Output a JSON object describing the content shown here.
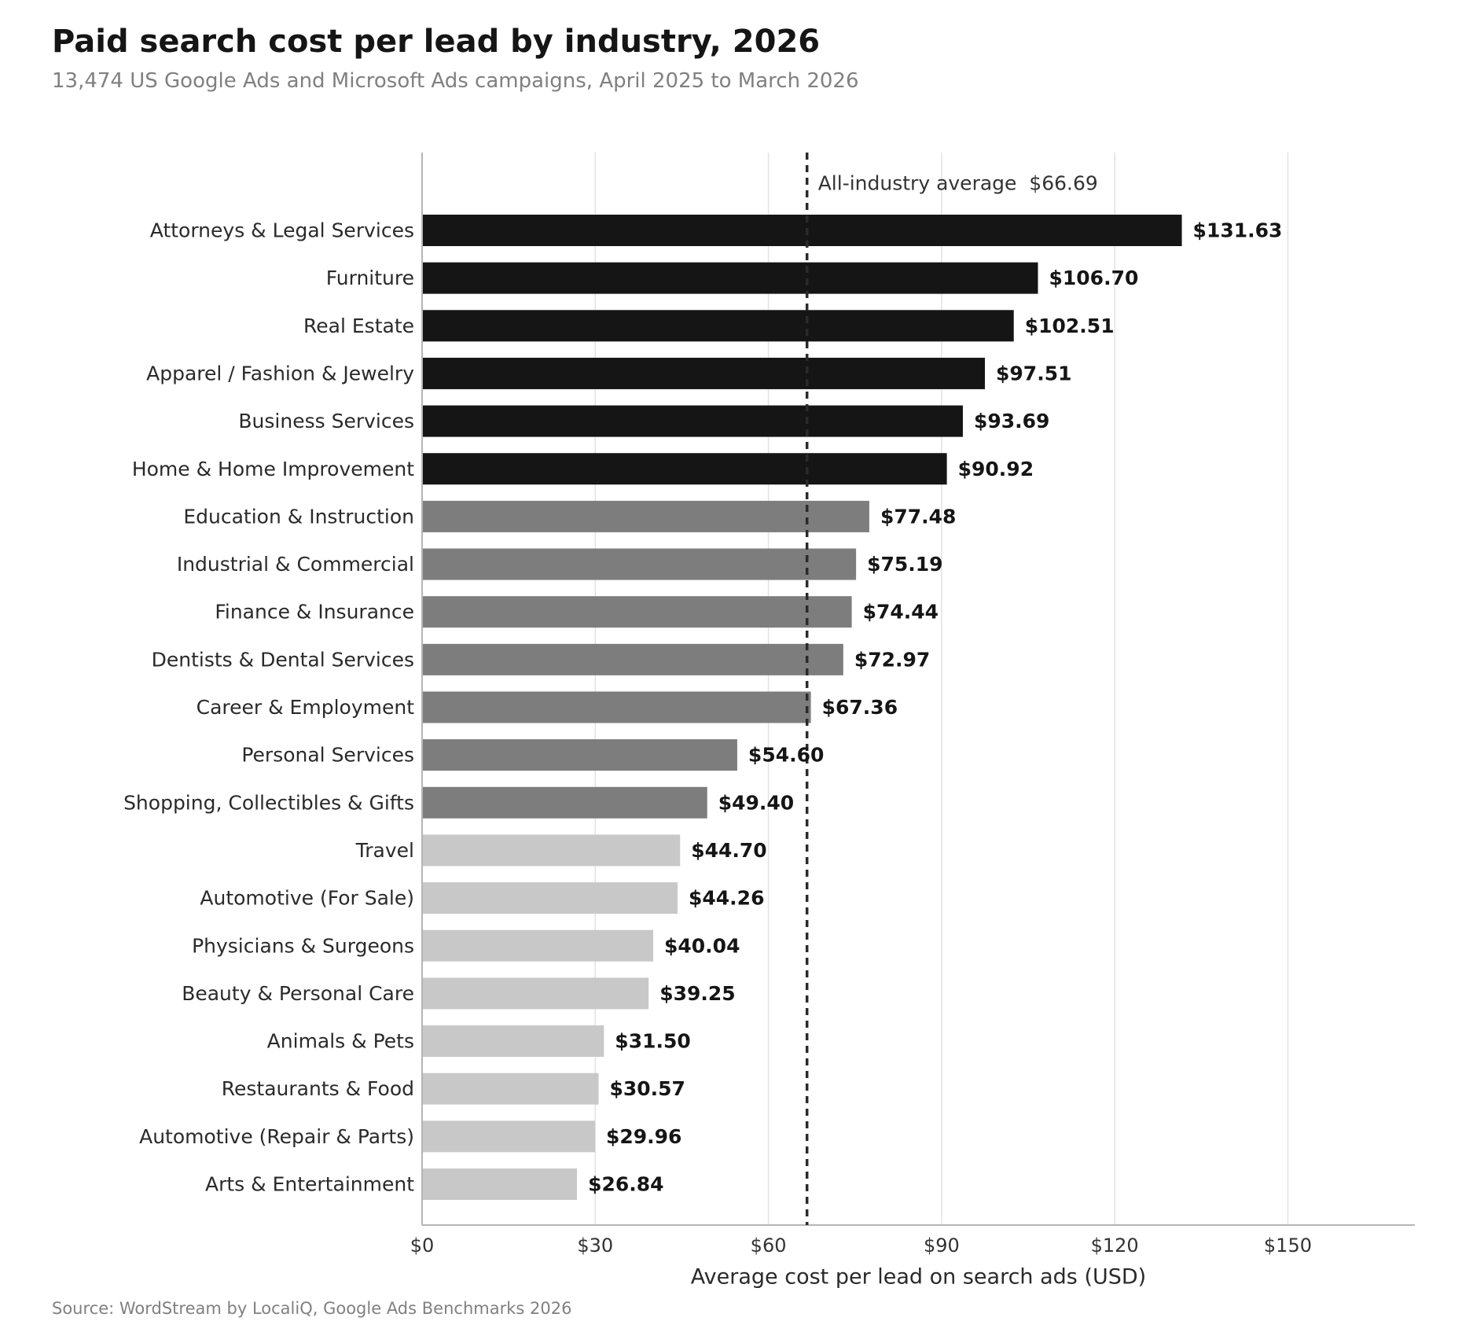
{
  "header": {
    "title": "Paid search cost per lead by industry, 2026",
    "subtitle": "13,474 US Google Ads and Microsoft Ads campaigns, April 2025 to March 2026"
  },
  "footer": {
    "source": "Source: WordStream by LocaliQ, Google Ads Benchmarks 2026"
  },
  "chart_data": {
    "type": "bar",
    "orientation": "horizontal",
    "title": "Paid search cost per lead by industry, 2026",
    "subtitle": "13,474 US Google Ads and Microsoft Ads campaigns, April 2025 to March 2026",
    "xlabel": "Average cost per lead on search ads (USD)",
    "ylabel": "",
    "xlim": [
      0,
      172
    ],
    "xticks": [
      0,
      30,
      60,
      90,
      120,
      150
    ],
    "xtick_labels": [
      "$0",
      "$30",
      "$60",
      "$90",
      "$120",
      "$150"
    ],
    "grid": "vertical",
    "reference_line": {
      "value": 66.69,
      "label": "All-industry average  $66.69",
      "style": "dashed"
    },
    "colors": {
      "high": "#151515",
      "mid": "#7d7d7d",
      "low": "#c8c8c8",
      "axis": "#b5b5b5",
      "grid": "#e2e2e2"
    },
    "categories": [
      "Attorneys & Legal Services",
      "Furniture",
      "Real Estate",
      "Apparel / Fashion & Jewelry",
      "Business Services",
      "Home & Home Improvement",
      "Education & Instruction",
      "Industrial & Commercial",
      "Finance & Insurance",
      "Dentists & Dental Services",
      "Career & Employment",
      "Personal Services",
      "Shopping, Collectibles & Gifts",
      "Travel",
      "Automotive (For Sale)",
      "Physicians & Surgeons",
      "Beauty & Personal Care",
      "Animals & Pets",
      "Restaurants & Food",
      "Automotive (Repair & Parts)",
      "Arts & Entertainment"
    ],
    "values": [
      131.63,
      106.7,
      102.51,
      97.51,
      93.69,
      90.92,
      77.48,
      75.19,
      74.44,
      72.97,
      67.36,
      54.6,
      49.4,
      44.7,
      44.26,
      40.04,
      39.25,
      31.5,
      30.57,
      29.96,
      26.84
    ],
    "value_labels": [
      "$131.63",
      "$106.70",
      "$102.51",
      "$97.51",
      "$93.69",
      "$90.92",
      "$77.48",
      "$75.19",
      "$74.44",
      "$72.97",
      "$67.36",
      "$54.60",
      "$49.40",
      "$44.70",
      "$44.26",
      "$40.04",
      "$39.25",
      "$31.50",
      "$30.57",
      "$29.96",
      "$26.84"
    ],
    "tiers": [
      "high",
      "high",
      "high",
      "high",
      "high",
      "high",
      "mid",
      "mid",
      "mid",
      "mid",
      "mid",
      "mid",
      "mid",
      "low",
      "low",
      "low",
      "low",
      "low",
      "low",
      "low",
      "low"
    ]
  }
}
